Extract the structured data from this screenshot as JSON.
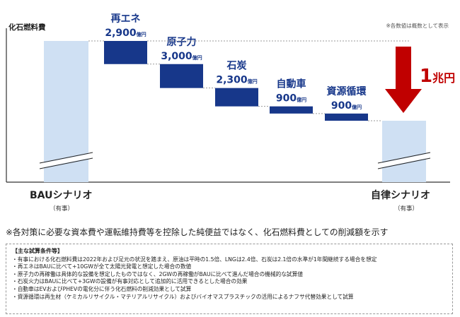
{
  "page": {
    "y_axis_label": "化石燃料費",
    "top_note": "※各数値は概数として表示",
    "main_note": "※各対策に必要な資本費や運転維持費等を控除した純便益ではなく、化石燃料費としての削減額を示す"
  },
  "chart_data": {
    "type": "bar",
    "variant": "waterfall",
    "unit": "億円",
    "categories": [
      "BAUシナリオ",
      "再エネ",
      "原子力",
      "石炭",
      "自動車",
      "資源循環",
      "自律シナリオ"
    ],
    "category_sublabels": [
      "（有事）",
      "",
      "",
      "",
      "",
      "",
      "（有事）"
    ],
    "steps": [
      {
        "name": "再エネ",
        "value": 2900,
        "value_label": "2,900",
        "unit_label": "億円"
      },
      {
        "name": "原子力",
        "value": 3000,
        "value_label": "3,000",
        "unit_label": "億円"
      },
      {
        "name": "石炭",
        "value": 2300,
        "value_label": "2,300",
        "unit_label": "億円"
      },
      {
        "name": "自動車",
        "value": 900,
        "value_label": "900",
        "unit_label": "億円"
      },
      {
        "name": "資源循環",
        "value": 900,
        "value_label": "900",
        "unit_label": "億円"
      }
    ],
    "axis_break": true,
    "total_reduction": {
      "number": "1",
      "unit": "兆円"
    },
    "colors": {
      "total_bar": "#cfe0f3",
      "step_bar": "#17378a",
      "label_text": "#17378a",
      "arrow": "#c00000",
      "connector": "#9a9a9a"
    }
  },
  "conditions": {
    "title": "【主な試算条件等】",
    "items": [
      "・有事における化石燃料費は2022年および足元の状況を踏まえ、原油は平時の1.5倍、LNGは2.4倍、石炭は2.1倍の水準が1年間継続する場合を想定",
      "・再エネはBAUに比べて+10GWが全て太陽光発電と想定した場合の数値",
      "・原子力の再稼働は具体的な設備を想定したものではなく、2GWの再稼働がBAUに比べて進んだ場合の機械的な試算値",
      "・石炭火力はBAUに比べて+3GWの設備が有事対応として追加的に活用できるとした場合の効果",
      "・自動車はEVおよびPHEVの電化分に伴う化石燃料の削減効果として試算",
      "・資源循環は再生材（ケミカルリサイクル・マテリアルリサイクル）およびバイオマスプラスチックの活用によるナフサ代替効果として試算"
    ]
  }
}
